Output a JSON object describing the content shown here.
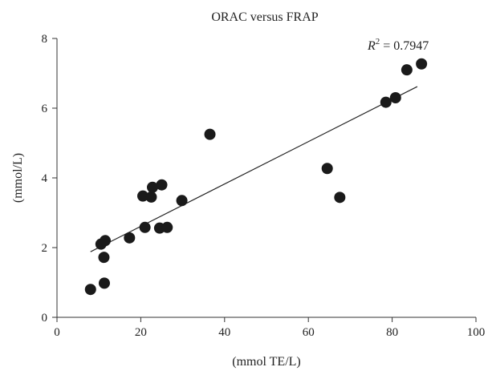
{
  "chart_data": {
    "type": "scatter",
    "title": "ORAC versus FRAP",
    "xlabel": "(mmol TE/L)",
    "ylabel": "(mmol/L)",
    "xlim": [
      0,
      100
    ],
    "ylim": [
      0,
      8
    ],
    "xticks": [
      0,
      20,
      40,
      60,
      80,
      100
    ],
    "yticks": [
      0,
      2,
      4,
      6,
      8
    ],
    "grid": false,
    "legend": "none",
    "annotation": {
      "symbol": "R",
      "superscript": "2",
      "value_text": " = 0.7947"
    },
    "series": [
      {
        "points": [
          {
            "x": 8,
            "y": 0.8
          },
          {
            "x": 10.5,
            "y": 2.1
          },
          {
            "x": 11.2,
            "y": 1.72
          },
          {
            "x": 11.3,
            "y": 0.98
          },
          {
            "x": 11.5,
            "y": 2.2
          },
          {
            "x": 17.3,
            "y": 2.28
          },
          {
            "x": 20.5,
            "y": 3.48
          },
          {
            "x": 21,
            "y": 2.58
          },
          {
            "x": 22.5,
            "y": 3.45
          },
          {
            "x": 22.8,
            "y": 3.73
          },
          {
            "x": 24.5,
            "y": 2.56
          },
          {
            "x": 25,
            "y": 3.8
          },
          {
            "x": 26.3,
            "y": 2.58
          },
          {
            "x": 29.8,
            "y": 3.35
          },
          {
            "x": 36.5,
            "y": 5.25
          },
          {
            "x": 64.5,
            "y": 4.27
          },
          {
            "x": 67.5,
            "y": 3.44
          },
          {
            "x": 78.5,
            "y": 6.17
          },
          {
            "x": 80.8,
            "y": 6.3
          },
          {
            "x": 83.5,
            "y": 7.1
          },
          {
            "x": 87,
            "y": 7.27
          }
        ]
      }
    ],
    "trendline": {
      "x": [
        8,
        86
      ],
      "y": [
        1.88,
        6.62
      ]
    },
    "colors": {
      "points": "#1a1a1a",
      "axis": "#333333",
      "line": "#222222"
    }
  }
}
